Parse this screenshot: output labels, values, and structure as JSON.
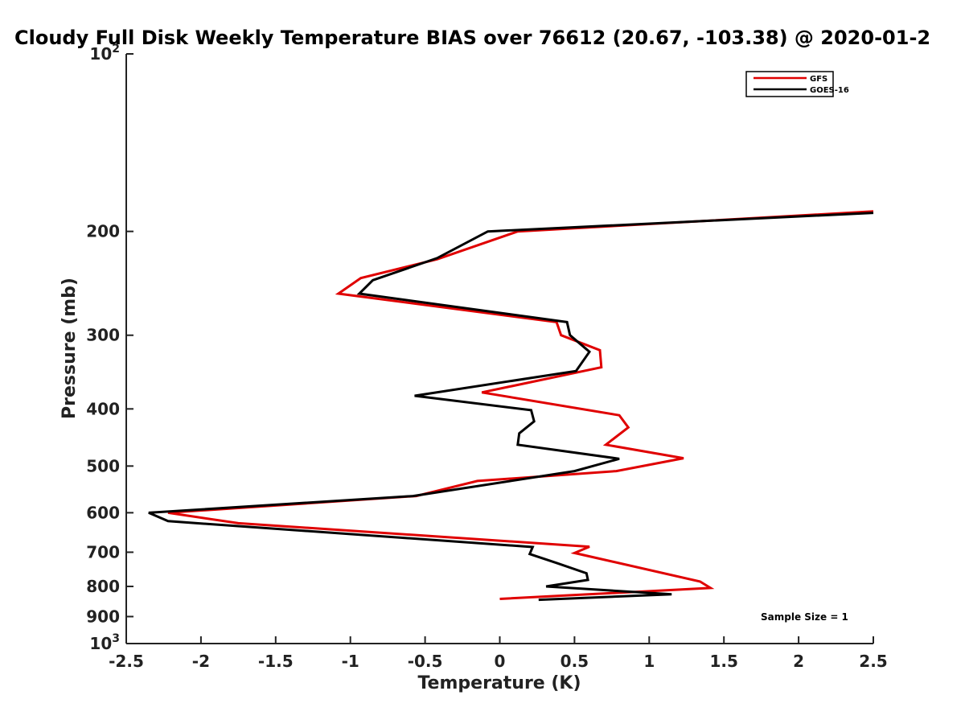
{
  "chart_data": {
    "type": "line",
    "title": "Cloudy Full Disk Weekly Temperature BIAS over 76612 (20.67, -103.38) @ 2020-01-2",
    "xlabel": "Temperature (K)",
    "ylabel": "Pressure (mb)",
    "xlim": [
      -2.5,
      2.5
    ],
    "ylim": [
      100,
      1000
    ],
    "yscale": "log",
    "y_reversed": true,
    "x_ticks": [
      "-2.5",
      "-2",
      "-1.5",
      "-1",
      "-0.5",
      "0",
      "0.5",
      "1",
      "1.5",
      "2",
      "2.5"
    ],
    "x_tick_values": [
      -2.5,
      -2,
      -1.5,
      -1,
      -0.5,
      0,
      0.5,
      1,
      1.5,
      2,
      2.5
    ],
    "y_tick_values": [
      100,
      200,
      300,
      400,
      500,
      600,
      700,
      800,
      900,
      1000
    ],
    "y_ticks": [
      {
        "base": "10",
        "exp": "2"
      },
      {
        "label": "200"
      },
      {
        "label": "300"
      },
      {
        "label": "400"
      },
      {
        "label": "500"
      },
      {
        "label": "600"
      },
      {
        "label": "700"
      },
      {
        "label": "800"
      },
      {
        "label": "900"
      },
      {
        "base": "10",
        "exp": "3"
      }
    ],
    "legend": {
      "position": "top-right",
      "entries": [
        "GFS",
        "GOES-16"
      ]
    },
    "annotation": "Sample Size = 1",
    "series": [
      {
        "name": "GFS",
        "color": "#e00000",
        "x": [
          2.5,
          0.12,
          -0.42,
          -0.93,
          -1.08,
          0.38,
          0.41,
          0.67,
          0.68,
          -0.12,
          0.8,
          0.86,
          0.71,
          1.23,
          0.78,
          -0.15,
          -0.56,
          -2.22,
          -1.75,
          0.6,
          0.5,
          1.34,
          1.41,
          0.0
        ],
        "y": [
          185,
          200,
          223,
          240,
          255,
          285,
          300,
          318,
          340,
          375,
          410,
          430,
          460,
          485,
          510,
          530,
          562,
          600,
          625,
          685,
          702,
          785,
          805,
          840
        ]
      },
      {
        "name": "GOES-16",
        "color": "#000000",
        "x": [
          2.5,
          -0.08,
          -0.42,
          -0.85,
          -0.94,
          0.45,
          0.47,
          0.6,
          0.51,
          -0.57,
          0.21,
          0.23,
          0.13,
          0.12,
          0.8,
          0.5,
          -0.58,
          -2.35,
          -2.22,
          0.22,
          0.2,
          0.38,
          0.58,
          0.59,
          0.31,
          1.15,
          0.26
        ],
        "y": [
          186,
          200,
          222,
          242,
          255,
          285,
          300,
          320,
          345,
          380,
          402,
          420,
          440,
          460,
          486,
          510,
          562,
          600,
          620,
          686,
          705,
          730,
          760,
          780,
          800,
          825,
          843
        ]
      }
    ]
  }
}
